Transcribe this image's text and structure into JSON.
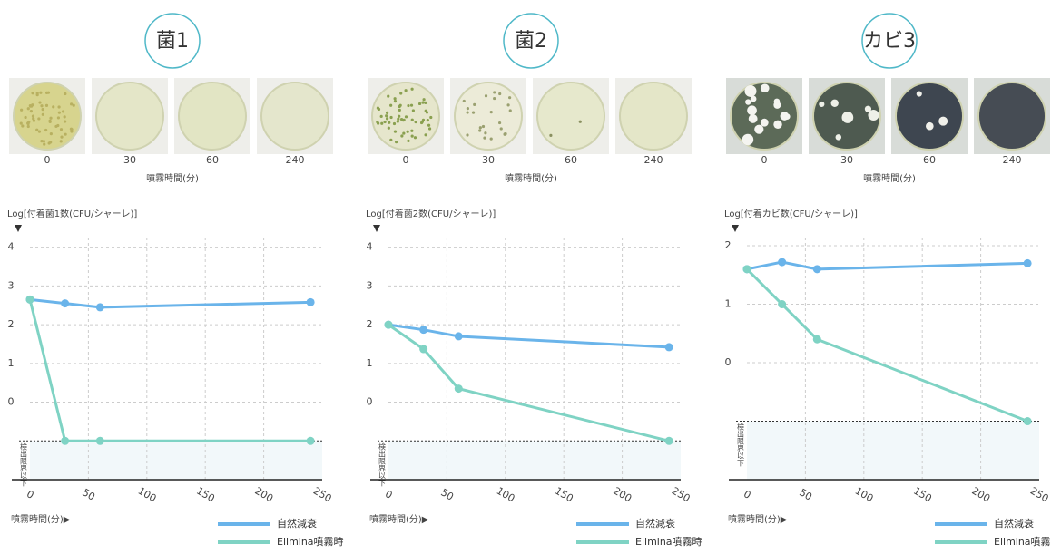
{
  "chart_data": [
    {
      "type": "line",
      "title": "菌1",
      "sample_times": [
        "0",
        "30",
        "60",
        "240"
      ],
      "sample_caption": "噴霧時間(分)",
      "ylabel": "Log[付着菌1数(CFU/シャーレ)]",
      "xlabel": "噴霧時間(分)▶",
      "detection_label": "検出限界以下",
      "detection_limit": -1,
      "x": [
        0,
        30,
        60,
        240
      ],
      "series": [
        {
          "name": "自然減衰",
          "color": "#6ab4ea",
          "values": [
            2.65,
            2.55,
            2.45,
            2.58
          ]
        },
        {
          "name": "Elimina噴霧時",
          "color": "#7fd3c4",
          "values": [
            2.65,
            -1,
            -1,
            -1
          ]
        }
      ],
      "xlim": [
        0,
        250
      ],
      "xticks": [
        0,
        50,
        100,
        150,
        200,
        250
      ],
      "ylim": [
        -2,
        4.25
      ],
      "yticks": [
        0,
        1,
        2,
        3,
        4
      ]
    },
    {
      "type": "line",
      "title": "菌2",
      "sample_times": [
        "0",
        "30",
        "60",
        "240"
      ],
      "sample_caption": "噴霧時間(分)",
      "ylabel": "Log[付着菌2数(CFU/シャーレ)]",
      "xlabel": "噴霧時間(分)▶",
      "detection_label": "検出限界以下",
      "detection_limit": -1,
      "x": [
        0,
        30,
        60,
        240
      ],
      "series": [
        {
          "name": "自然減衰",
          "color": "#6ab4ea",
          "values": [
            2.0,
            1.87,
            1.7,
            1.42
          ]
        },
        {
          "name": "Elimina噴霧時",
          "color": "#7fd3c4",
          "values": [
            2.0,
            1.37,
            0.35,
            -1
          ]
        }
      ],
      "xlim": [
        0,
        250
      ],
      "xticks": [
        0,
        50,
        100,
        150,
        200,
        250
      ],
      "ylim": [
        -2,
        4.25
      ],
      "yticks": [
        0,
        1,
        2,
        3,
        4
      ]
    },
    {
      "type": "line",
      "title": "カビ3",
      "sample_times": [
        "0",
        "30",
        "60",
        "240"
      ],
      "sample_caption": "噴霧時間(分)",
      "ylabel": "Log[付着カビ数(CFU/シャーレ)]",
      "xlabel": "噴霧時間(分)▶",
      "detection_label": "検出限界以下",
      "detection_limit": -1,
      "x": [
        0,
        30,
        60,
        240
      ],
      "series": [
        {
          "name": "自然減衰",
          "color": "#6ab4ea",
          "values": [
            1.6,
            1.72,
            1.6,
            1.7
          ]
        },
        {
          "name": "Elimina噴霧時",
          "color": "#7fd3c4",
          "values": [
            1.6,
            1.0,
            0.4,
            -1
          ]
        }
      ],
      "xlim": [
        0,
        250
      ],
      "xticks": [
        0,
        50,
        100,
        150,
        200,
        250
      ],
      "ylim": [
        -2,
        2.14
      ],
      "yticks": [
        0,
        1,
        2
      ]
    }
  ]
}
